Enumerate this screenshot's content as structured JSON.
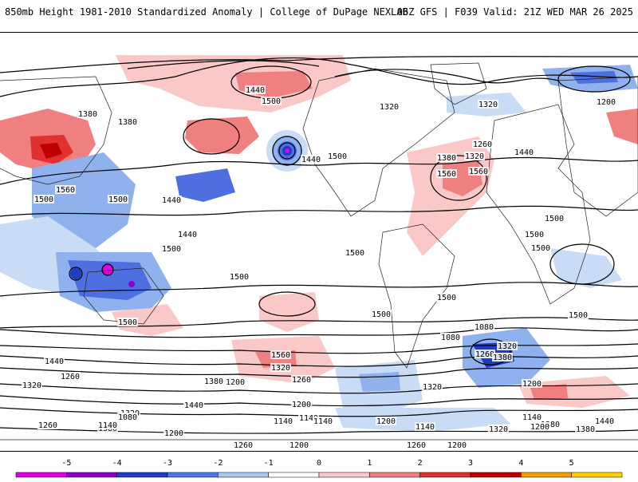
{
  "header": {
    "title": "850mb Height 1981-2010 Standardized Anomaly | College of DuPage NEXLAB",
    "run_info": "06Z GFS | F039 Valid: 21Z WED MAR 26 2025"
  },
  "colorbar": {
    "ticks": [
      "-5",
      "-4",
      "-3",
      "-2",
      "-1",
      "0",
      "1",
      "2",
      "3",
      "4",
      "5"
    ],
    "colors": [
      "#e000e0",
      "#8a00c8",
      "#1f3cc8",
      "#4d78e6",
      "#a8c8f0",
      "#ffffff",
      "#fbc8c8",
      "#f08080",
      "#e03030",
      "#c00000",
      "#f0a000",
      "#ffd000"
    ]
  },
  "map": {
    "contour_labels": [
      "1440",
      "1500",
      "1380",
      "1380",
      "1320",
      "1320",
      "1200",
      "1260",
      "1560",
      "1380",
      "1320",
      "1440",
      "1500",
      "1440",
      "1560",
      "1500",
      "1440",
      "1500",
      "1440",
      "1500",
      "1500",
      "1500",
      "1500",
      "1500",
      "1500",
      "1500",
      "1560",
      "1560",
      "1500",
      "1500",
      "1500",
      "1440",
      "1380",
      "1320",
      "1260",
      "1320",
      "1440",
      "1380",
      "1200",
      "1260",
      "1080",
      "1320",
      "1200",
      "1140",
      "1260",
      "1080",
      "1140",
      "1200",
      "1140",
      "1140",
      "1200",
      "1260",
      "1200",
      "1260",
      "1320",
      "1380",
      "1440",
      "1380",
      "1140",
      "1320",
      "1260",
      "1200",
      "1140",
      "1200",
      "1320",
      "1380",
      "1080",
      "1200"
    ],
    "anomaly_colors": {
      "pos1": "#fbc8c8",
      "pos2": "#f08080",
      "pos3": "#e03030",
      "pos4": "#c00000",
      "neg1": "#c8dcf5",
      "neg2": "#8fb2ee",
      "neg3": "#4d6fe0",
      "neg4": "#1f3cc8",
      "neg5": "#e000e0"
    }
  }
}
